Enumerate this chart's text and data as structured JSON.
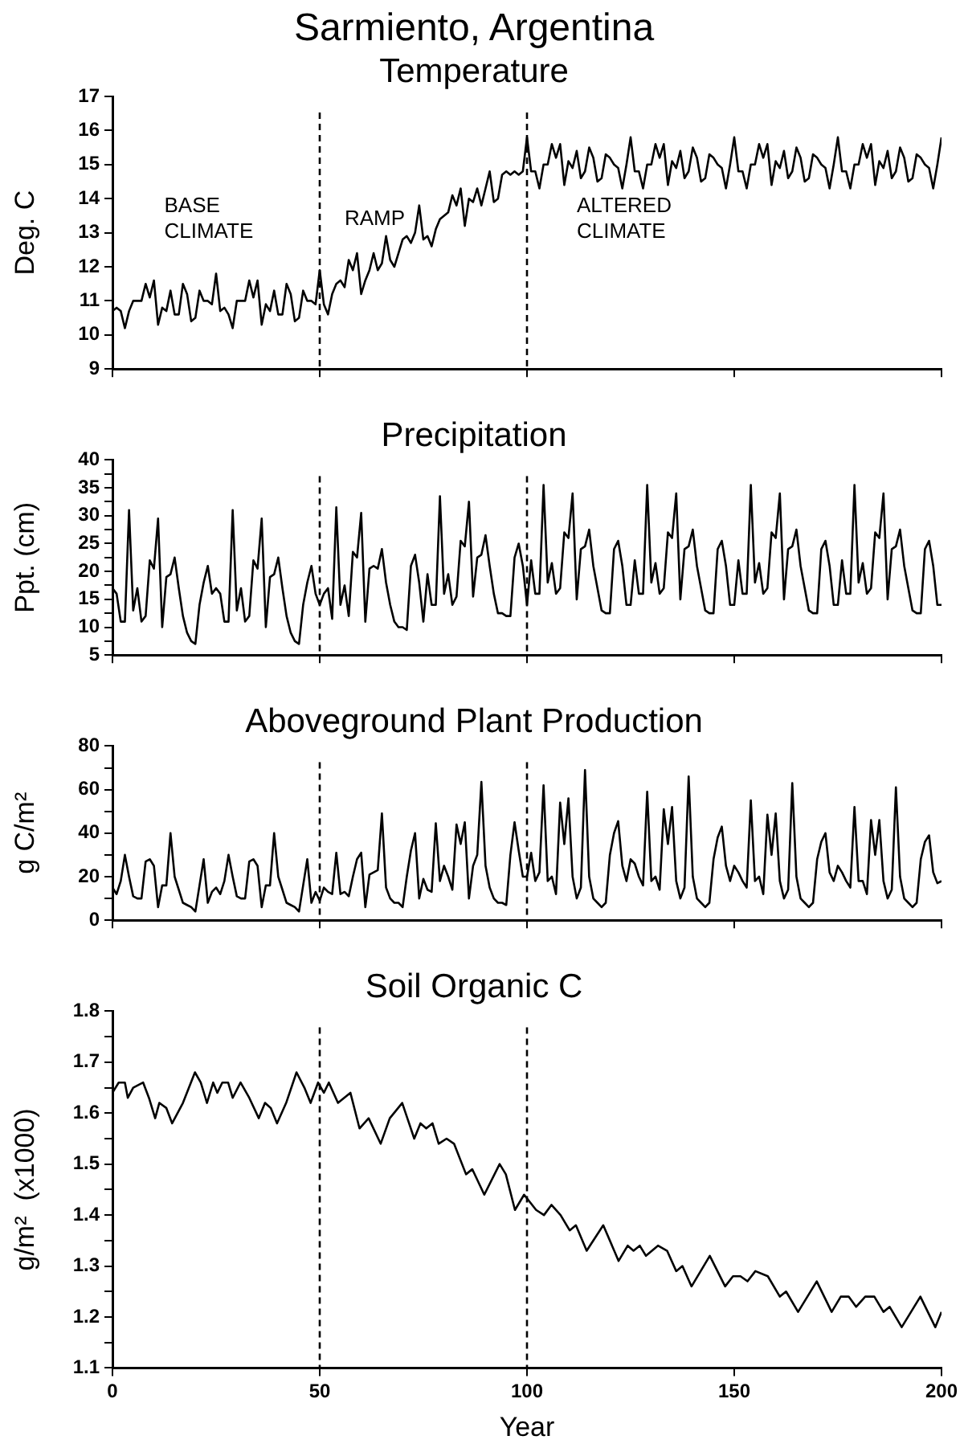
{
  "chart_data": [
    {
      "type": "line",
      "title": "Sarmiento, Argentina",
      "subtitle": "Temperature",
      "ylabel": "Deg. C",
      "x": [
        0,
        1,
        2,
        3,
        4,
        5,
        6,
        7,
        8,
        9,
        10,
        11,
        12,
        13,
        14,
        15,
        16,
        17,
        18,
        19,
        20,
        21,
        22,
        23,
        24,
        25,
        26,
        27,
        28,
        29,
        30,
        31,
        32,
        33,
        34,
        35,
        36,
        37,
        38,
        39,
        40,
        41,
        42,
        43,
        44,
        45,
        46,
        47,
        48,
        49,
        50,
        51,
        52,
        53,
        54,
        55,
        56,
        57,
        58,
        59,
        60,
        61,
        62,
        63,
        64,
        65,
        66,
        67,
        68,
        69,
        70,
        71,
        72,
        73,
        74,
        75,
        76,
        77,
        78,
        79,
        80,
        81,
        82,
        83,
        84,
        85,
        86,
        87,
        88,
        89,
        90,
        91,
        92,
        93,
        94,
        95,
        96,
        97,
        98,
        99,
        100,
        101,
        102,
        103,
        104,
        105,
        106,
        107,
        108,
        109,
        110,
        111,
        112,
        113,
        114,
        115,
        116,
        117,
        118,
        119,
        120,
        121,
        122,
        123,
        124,
        125,
        126,
        127,
        128,
        129,
        130,
        131,
        132,
        133,
        134,
        135,
        136,
        137,
        138,
        139,
        140,
        141,
        142,
        143,
        144,
        145,
        146,
        147,
        148,
        149,
        150,
        151,
        152,
        153,
        154,
        155,
        156,
        157,
        158,
        159,
        160,
        161,
        162,
        163,
        164,
        165,
        166,
        167,
        168,
        169,
        170,
        171,
        172,
        173,
        174,
        175,
        176,
        177,
        178,
        179,
        180,
        181,
        182,
        183,
        184,
        185,
        186,
        187,
        188,
        189,
        190,
        191,
        192,
        193,
        194,
        195,
        196,
        197,
        198,
        199,
        200
      ],
      "series": [
        {
          "color": "#000000",
          "values": [
            10.7,
            10.8,
            10.7,
            10.2,
            10.7,
            11.0,
            11.0,
            11.0,
            11.5,
            11.1,
            11.6,
            10.3,
            10.8,
            10.7,
            11.3,
            10.6,
            10.6,
            11.5,
            11.2,
            10.4,
            10.5,
            11.3,
            11.0,
            11.0,
            10.9,
            11.8,
            10.7,
            10.8,
            10.6,
            10.2,
            11.0,
            11.0,
            11.0,
            11.6,
            11.1,
            11.6,
            10.3,
            10.9,
            10.7,
            11.3,
            10.6,
            10.6,
            11.5,
            11.2,
            10.4,
            10.5,
            11.3,
            11.0,
            11.0,
            10.9,
            11.9,
            10.9,
            10.6,
            11.2,
            11.5,
            11.6,
            11.4,
            12.2,
            11.9,
            12.4,
            11.2,
            11.6,
            11.9,
            12.4,
            11.9,
            12.1,
            12.9,
            12.2,
            12.0,
            12.4,
            12.8,
            12.9,
            12.7,
            13.0,
            13.8,
            12.8,
            12.9,
            12.6,
            13.1,
            13.4,
            13.5,
            13.6,
            14.1,
            13.8,
            14.3,
            13.2,
            14.0,
            13.9,
            14.3,
            13.8,
            14.3,
            14.8,
            13.9,
            14.0,
            14.7,
            14.8,
            14.7,
            14.8,
            14.7,
            14.8,
            15.8,
            14.8,
            14.8,
            14.3,
            15.0,
            15.0,
            15.6,
            15.2,
            15.6,
            14.4,
            15.1,
            14.9,
            15.4,
            14.6,
            14.8,
            15.5,
            15.2,
            14.5,
            14.6,
            15.3,
            15.2,
            15.0,
            14.9,
            14.3,
            15.0,
            15.8,
            14.8,
            14.8,
            14.3,
            15.0,
            15.0,
            15.6,
            15.2,
            15.6,
            14.4,
            15.1,
            14.9,
            15.4,
            14.6,
            14.8,
            15.5,
            15.2,
            14.5,
            14.6,
            15.3,
            15.2,
            15.0,
            14.9,
            14.3,
            15.0,
            15.8,
            14.8,
            14.8,
            14.3,
            15.0,
            15.0,
            15.6,
            15.2,
            15.6,
            14.4,
            15.1,
            14.9,
            15.4,
            14.6,
            14.8,
            15.5,
            15.2,
            14.5,
            14.6,
            15.3,
            15.2,
            15.0,
            14.9,
            14.3,
            15.0,
            15.8,
            14.8,
            14.8,
            14.3,
            15.0,
            15.0,
            15.6,
            15.2,
            15.6,
            14.4,
            15.1,
            14.9,
            15.4,
            14.6,
            14.8,
            15.5,
            15.2,
            14.5,
            14.6,
            15.3,
            15.2,
            15.0,
            14.9,
            14.3,
            15.0,
            15.8
          ]
        }
      ],
      "xlim": [
        0,
        200
      ],
      "xticks": [
        0,
        50,
        100,
        150,
        200
      ],
      "ylim": [
        9,
        17
      ],
      "yticks": [
        9,
        10,
        11,
        12,
        13,
        14,
        15,
        16,
        17
      ],
      "tick_labels": "y",
      "grid": false,
      "legend": false,
      "marker": "none",
      "line_style": "solid",
      "ref_lines": [
        {
          "axis": "x",
          "value": 50,
          "line_style": "dashed"
        },
        {
          "axis": "x",
          "value": 100,
          "line_style": "dashed"
        }
      ],
      "annotations": [
        "BASE\nCLIMATE",
        "RAMP",
        "ALTERED\nCLIMATE"
      ]
    },
    {
      "type": "line",
      "title": "Precipitation",
      "ylabel": "Ppt. (cm)",
      "x": [
        0,
        1,
        2,
        3,
        4,
        5,
        6,
        7,
        8,
        9,
        10,
        11,
        12,
        13,
        14,
        15,
        16,
        17,
        18,
        19,
        20,
        21,
        22,
        23,
        24,
        25,
        26,
        27,
        28,
        29,
        30,
        31,
        32,
        33,
        34,
        35,
        36,
        37,
        38,
        39,
        40,
        41,
        42,
        43,
        44,
        45,
        46,
        47,
        48,
        49,
        50,
        51,
        52,
        53,
        54,
        55,
        56,
        57,
        58,
        59,
        60,
        61,
        62,
        63,
        64,
        65,
        66,
        67,
        68,
        69,
        70,
        71,
        72,
        73,
        74,
        75,
        76,
        77,
        78,
        79,
        80,
        81,
        82,
        83,
        84,
        85,
        86,
        87,
        88,
        89,
        90,
        91,
        92,
        93,
        94,
        95,
        96,
        97,
        98,
        99,
        100,
        101,
        102,
        103,
        104,
        105,
        106,
        107,
        108,
        109,
        110,
        111,
        112,
        113,
        114,
        115,
        116,
        117,
        118,
        119,
        120,
        121,
        122,
        123,
        124,
        125,
        126,
        127,
        128,
        129,
        130,
        131,
        132,
        133,
        134,
        135,
        136,
        137,
        138,
        139,
        140,
        141,
        142,
        143,
        144,
        145,
        146,
        147,
        148,
        149,
        150,
        151,
        152,
        153,
        154,
        155,
        156,
        157,
        158,
        159,
        160,
        161,
        162,
        163,
        164,
        165,
        166,
        167,
        168,
        169,
        170,
        171,
        172,
        173,
        174,
        175,
        176,
        177,
        178,
        179,
        180,
        181,
        182,
        183,
        184,
        185,
        186,
        187,
        188,
        189,
        190,
        191,
        192,
        193,
        194,
        195,
        196,
        197,
        198,
        199,
        200
      ],
      "series": [
        {
          "color": "#000000",
          "values": [
            17,
            16,
            11,
            11,
            31,
            13,
            17,
            11,
            12,
            22,
            20.5,
            29.5,
            10,
            19,
            19.5,
            22.5,
            17,
            12,
            9,
            7.5,
            7,
            14,
            18,
            21,
            16,
            17,
            16,
            11,
            11,
            31,
            13,
            17,
            11,
            12,
            22,
            20.5,
            29.5,
            10,
            19,
            19.5,
            22.5,
            17,
            12,
            9,
            7.5,
            7,
            14,
            18,
            21,
            16,
            14,
            16,
            17,
            11.5,
            31.5,
            14,
            17.5,
            12,
            23.5,
            22.5,
            30.5,
            11,
            20.5,
            21,
            20.5,
            24,
            18,
            14,
            11,
            10,
            10,
            9.5,
            21,
            23,
            18,
            11,
            19.5,
            14,
            14,
            33.5,
            16,
            19.5,
            14,
            15.5,
            25.5,
            24.5,
            32.5,
            15.5,
            22.5,
            23,
            26.5,
            21,
            16,
            12.5,
            12.5,
            12,
            12,
            22.5,
            25,
            21,
            14,
            22,
            16,
            16,
            35.5,
            18,
            21.5,
            16,
            17,
            27,
            26,
            34,
            15,
            24,
            24.5,
            27.5,
            21,
            17,
            13,
            12.5,
            12.5,
            24,
            25.5,
            21,
            14,
            14,
            22,
            16,
            16,
            35.5,
            18,
            21.5,
            16,
            17,
            27,
            26,
            34,
            15,
            24,
            24.5,
            27.5,
            21,
            17,
            13,
            12.5,
            12.5,
            24,
            25.5,
            21,
            14,
            14,
            22,
            16,
            16,
            35.5,
            18,
            21.5,
            16,
            17,
            27,
            26,
            34,
            15,
            24,
            24.5,
            27.5,
            21,
            17,
            13,
            12.5,
            12.5,
            24,
            25.5,
            21,
            14,
            14,
            22,
            16,
            16,
            35.5,
            18,
            21.5,
            16,
            17,
            27,
            26,
            34,
            15,
            24,
            24.5,
            27.5,
            21,
            17,
            13,
            12.5,
            12.5,
            24,
            25.5,
            21,
            14,
            14
          ]
        }
      ],
      "xlim": [
        0,
        200
      ],
      "xticks": [
        0,
        50,
        100,
        150,
        200
      ],
      "ylim": [
        5,
        40
      ],
      "yticks": [
        5,
        {
          "value": 7.5,
          "label": null
        },
        10,
        {
          "value": 12.5,
          "label": null
        },
        15,
        {
          "value": 17.5,
          "label": null
        },
        20,
        {
          "value": 22.5,
          "label": null
        },
        25,
        {
          "value": 27.5,
          "label": null
        },
        30,
        {
          "value": 32.5,
          "label": null
        },
        35,
        {
          "value": 37.5,
          "label": null
        },
        40
      ],
      "tick_labels": "y",
      "grid": false,
      "legend": false,
      "marker": "none",
      "line_style": "solid",
      "ref_lines": [
        {
          "axis": "x",
          "value": 50,
          "line_style": "dashed"
        },
        {
          "axis": "x",
          "value": 100,
          "line_style": "dashed"
        }
      ]
    },
    {
      "type": "line",
      "title": "Aboveground Plant Production",
      "ylabel": "g C/m²",
      "x": [
        0,
        1,
        2,
        3,
        4,
        5,
        6,
        7,
        8,
        9,
        10,
        11,
        12,
        13,
        14,
        15,
        16,
        17,
        18,
        19,
        20,
        21,
        22,
        23,
        24,
        25,
        26,
        27,
        28,
        29,
        30,
        31,
        32,
        33,
        34,
        35,
        36,
        37,
        38,
        39,
        40,
        41,
        42,
        43,
        44,
        45,
        46,
        47,
        48,
        49,
        50,
        51,
        52,
        53,
        54,
        55,
        56,
        57,
        58,
        59,
        60,
        61,
        62,
        63,
        64,
        65,
        66,
        67,
        68,
        69,
        70,
        71,
        72,
        73,
        74,
        75,
        76,
        77,
        78,
        79,
        80,
        81,
        82,
        83,
        84,
        85,
        86,
        87,
        88,
        89,
        90,
        91,
        92,
        93,
        94,
        95,
        96,
        97,
        98,
        99,
        100,
        101,
        102,
        103,
        104,
        105,
        106,
        107,
        108,
        109,
        110,
        111,
        112,
        113,
        114,
        115,
        116,
        117,
        118,
        119,
        120,
        121,
        122,
        123,
        124,
        125,
        126,
        127,
        128,
        129,
        130,
        131,
        132,
        133,
        134,
        135,
        136,
        137,
        138,
        139,
        140,
        141,
        142,
        143,
        144,
        145,
        146,
        147,
        148,
        149,
        150,
        151,
        152,
        153,
        154,
        155,
        156,
        157,
        158,
        159,
        160,
        161,
        162,
        163,
        164,
        165,
        166,
        167,
        168,
        169,
        170,
        171,
        172,
        173,
        174,
        175,
        176,
        177,
        178,
        179,
        180,
        181,
        182,
        183,
        184,
        185,
        186,
        187,
        188,
        189,
        190,
        191,
        192,
        193,
        194,
        195,
        196,
        197,
        198,
        199,
        200
      ],
      "series": [
        {
          "color": "#000000",
          "values": [
            15,
            12,
            18,
            30,
            20,
            11,
            10,
            10,
            27,
            28,
            25,
            6,
            16,
            16,
            40,
            20,
            14,
            8,
            7,
            6,
            4,
            16,
            28,
            8,
            13,
            15,
            12,
            18,
            30,
            20,
            11,
            10,
            10,
            27,
            28,
            25,
            6,
            16,
            16,
            40,
            20,
            14,
            8,
            7,
            6,
            4,
            16,
            28,
            8,
            13,
            9,
            15,
            13,
            12,
            31,
            12,
            13,
            11,
            20,
            28,
            31,
            6,
            21,
            22,
            23,
            49,
            15,
            10,
            8,
            8,
            6,
            20,
            32,
            40,
            10,
            19,
            14,
            13,
            44.5,
            18,
            25,
            20,
            14,
            44,
            35,
            45,
            10,
            25,
            30,
            63.5,
            25,
            15,
            10,
            8,
            8,
            7,
            30,
            45,
            32,
            20,
            20,
            31,
            18,
            22,
            62,
            18,
            20,
            12,
            54,
            35,
            56,
            20,
            10,
            15,
            69,
            20,
            10,
            8,
            6,
            8,
            30,
            40,
            45.5,
            25,
            18,
            28,
            26,
            20,
            16,
            59,
            18,
            20,
            14,
            51,
            35,
            52,
            18,
            10,
            15,
            66,
            20,
            10,
            8,
            6,
            8,
            28,
            38,
            43,
            25,
            18,
            25,
            22,
            18,
            15,
            55,
            18,
            20,
            12,
            48.5,
            30,
            49,
            18,
            10,
            14,
            63,
            20,
            10,
            8,
            6,
            8,
            28,
            36,
            40,
            22,
            18,
            25,
            22,
            18,
            15,
            52,
            18,
            18,
            12,
            46,
            30,
            46,
            18,
            10,
            14,
            61,
            20,
            10,
            8,
            6,
            8,
            28,
            36,
            39,
            22,
            17,
            18
          ]
        }
      ],
      "xlim": [
        0,
        200
      ],
      "xticks": [
        0,
        50,
        100,
        150,
        200
      ],
      "ylim": [
        0,
        80
      ],
      "yticks": [
        0,
        {
          "value": 10,
          "label": null
        },
        20,
        {
          "value": 30,
          "label": null
        },
        40,
        {
          "value": 50,
          "label": null
        },
        60,
        {
          "value": 70,
          "label": null
        },
        80
      ],
      "tick_labels": "y",
      "grid": false,
      "legend": false,
      "marker": "none",
      "line_style": "solid",
      "ref_lines": [
        {
          "axis": "x",
          "value": 50,
          "line_style": "dashed"
        },
        {
          "axis": "x",
          "value": 100,
          "line_style": "dashed"
        }
      ]
    },
    {
      "type": "line",
      "title": "Soil Organic C",
      "xlabel": "Year",
      "ylabel": "g/m²  (x1000)",
      "x": [
        0,
        1.5,
        3,
        3.7,
        5,
        7.4,
        8.8,
        10.3,
        11.3,
        13,
        14.4,
        17,
        19.9,
        21.3,
        22.8,
        24.3,
        25.3,
        26.5,
        27.9,
        29,
        30.9,
        33,
        35.3,
        36.8,
        38.2,
        39.7,
        41.9,
        44.4,
        46.3,
        47.8,
        49.6,
        51,
        52.2,
        54.4,
        57.4,
        59.6,
        61.8,
        64.7,
        66.9,
        69.9,
        72.8,
        74.3,
        75.7,
        77.2,
        78.7,
        80.6,
        82.4,
        85.3,
        86.8,
        89.7,
        93.4,
        94.9,
        97.1,
        99.3,
        102.2,
        104.1,
        105.9,
        108.1,
        110.3,
        111.8,
        114.4,
        118.4,
        122.1,
        124.3,
        125.7,
        127.2,
        128.7,
        131.6,
        133.8,
        136,
        137.5,
        139.7,
        144.1,
        147.8,
        149.7,
        151.5,
        153.2,
        155.1,
        158.1,
        161,
        162.5,
        165.4,
        169.9,
        173.5,
        175.7,
        177.6,
        179.4,
        181.6,
        183.8,
        186,
        187.5,
        190.4,
        194.9,
        198.5,
        200
      ],
      "series": [
        {
          "color": "#000000",
          "values": [
            1.64,
            1.66,
            1.66,
            1.63,
            1.65,
            1.66,
            1.63,
            1.59,
            1.62,
            1.61,
            1.58,
            1.62,
            1.68,
            1.66,
            1.62,
            1.66,
            1.64,
            1.66,
            1.66,
            1.63,
            1.66,
            1.63,
            1.59,
            1.62,
            1.61,
            1.58,
            1.62,
            1.68,
            1.65,
            1.62,
            1.66,
            1.64,
            1.66,
            1.62,
            1.64,
            1.57,
            1.59,
            1.54,
            1.59,
            1.62,
            1.55,
            1.58,
            1.57,
            1.58,
            1.54,
            1.55,
            1.54,
            1.48,
            1.49,
            1.44,
            1.5,
            1.48,
            1.41,
            1.44,
            1.41,
            1.4,
            1.42,
            1.4,
            1.37,
            1.38,
            1.33,
            1.38,
            1.31,
            1.34,
            1.33,
            1.34,
            1.32,
            1.34,
            1.33,
            1.29,
            1.3,
            1.26,
            1.32,
            1.26,
            1.28,
            1.28,
            1.27,
            1.29,
            1.28,
            1.24,
            1.25,
            1.21,
            1.27,
            1.21,
            1.24,
            1.24,
            1.22,
            1.24,
            1.24,
            1.21,
            1.22,
            1.18,
            1.24,
            1.18,
            1.21
          ]
        }
      ],
      "xlim": [
        0,
        200
      ],
      "xticks": [
        0,
        50,
        100,
        150,
        200
      ],
      "ylim": [
        1.1,
        1.8
      ],
      "yticks": [
        1.1,
        {
          "value": 1.15,
          "label": null
        },
        1.2,
        {
          "value": 1.25,
          "label": null
        },
        1.3,
        {
          "value": 1.35,
          "label": null
        },
        1.4,
        {
          "value": 1.45,
          "label": null
        },
        1.5,
        {
          "value": 1.55,
          "label": null
        },
        1.6,
        {
          "value": 1.65,
          "label": null
        },
        1.7,
        {
          "value": 1.75,
          "label": null
        },
        1.8
      ],
      "grid": false,
      "legend": false,
      "marker": "none",
      "line_style": "solid",
      "ref_lines": [
        {
          "axis": "x",
          "value": 50,
          "line_style": "dashed"
        },
        {
          "axis": "x",
          "value": 100,
          "line_style": "dashed"
        }
      ]
    }
  ]
}
